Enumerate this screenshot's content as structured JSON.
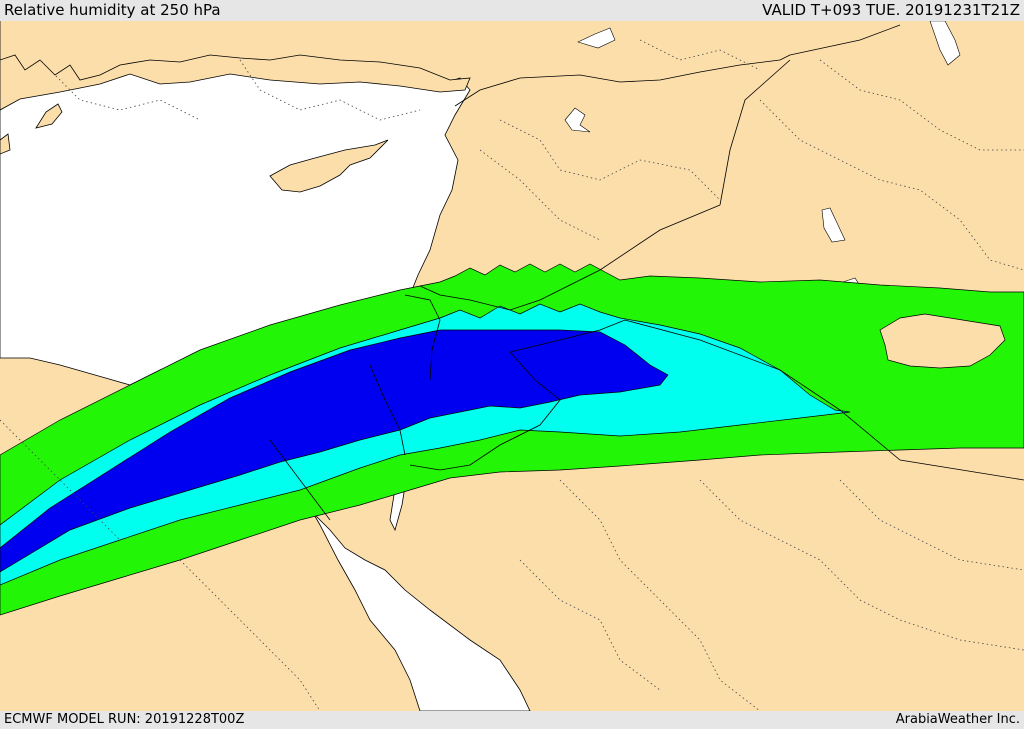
{
  "header": {
    "title": "Relative humidity at 250 hPa",
    "valid": "VALID T+093 TUE. 20191231T21Z"
  },
  "footer": {
    "model_run": "ECMWF MODEL RUN: 20191228T00Z",
    "credit": "ArabiaWeather Inc."
  },
  "map": {
    "colors": {
      "land": "#fbdeaa",
      "water": "#ffffff",
      "band_green": "#22f506",
      "band_cyan": "#00ffee",
      "band_blue": "#0000f0"
    }
  }
}
